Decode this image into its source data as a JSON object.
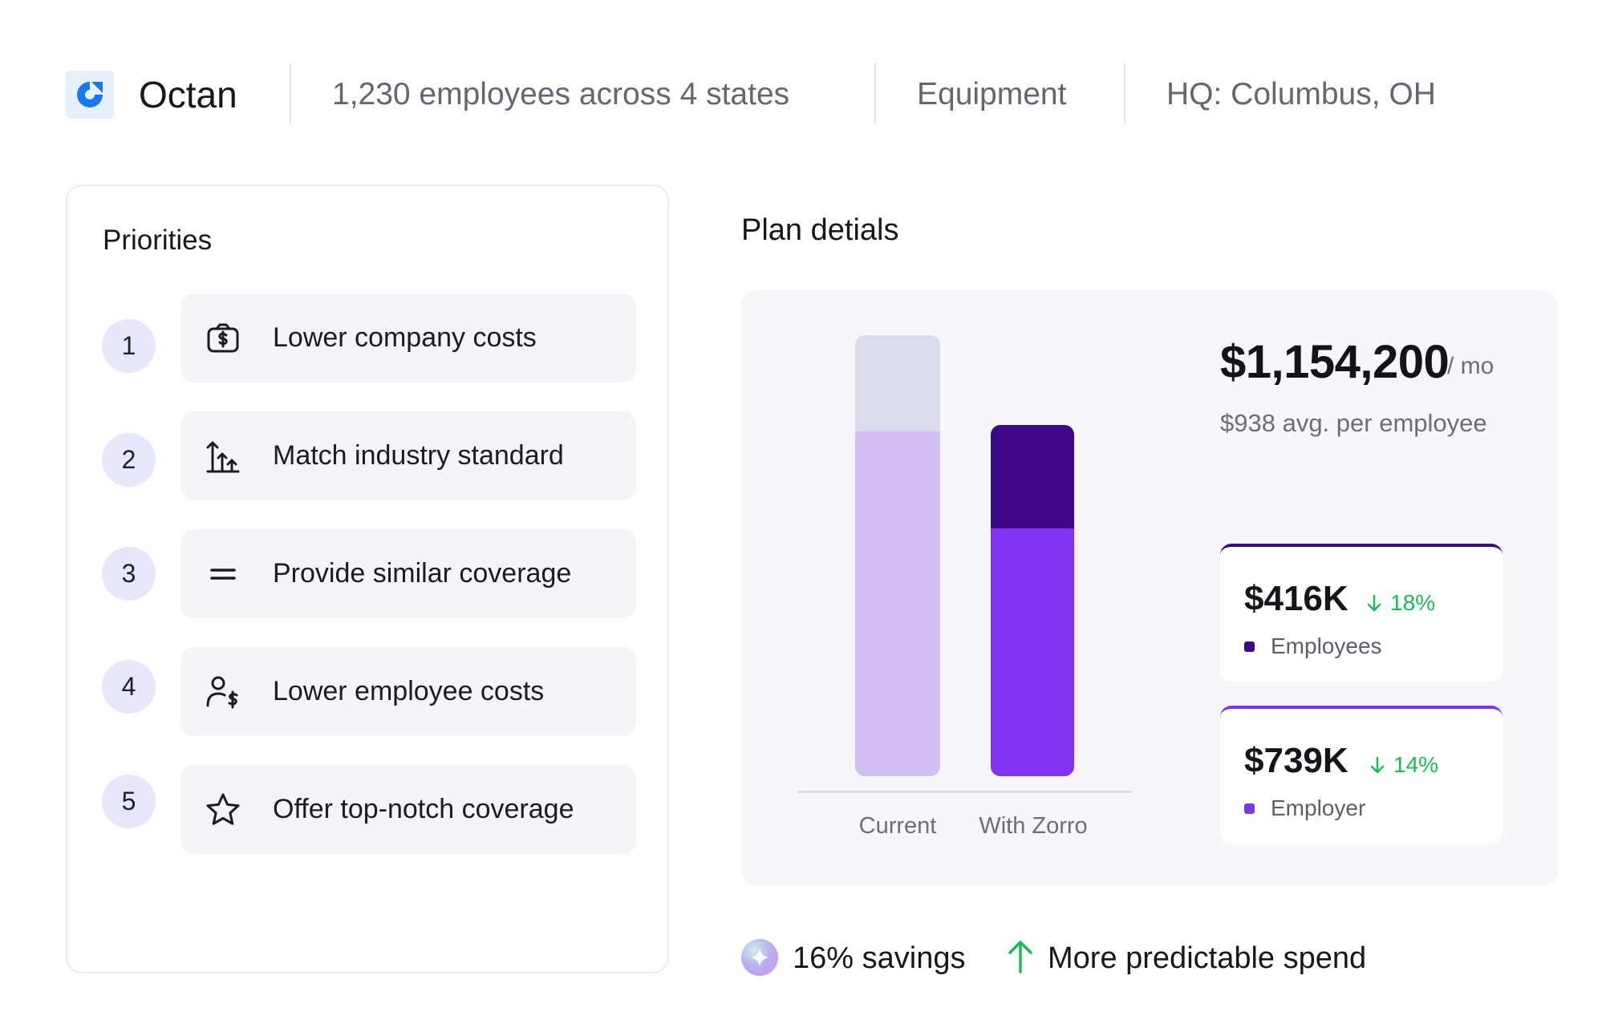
{
  "header": {
    "logo_icon": "octan-logo-icon",
    "company_name": "Octan",
    "employees": "1,230 employees across 4 states",
    "industry": "Equipment",
    "hq": "HQ: Columbus, OH"
  },
  "priorities": {
    "title": "Priorities",
    "items": [
      {
        "rank": "1",
        "icon": "money-bag-icon",
        "label": "Lower company costs"
      },
      {
        "rank": "2",
        "icon": "bar-chart-up-icon",
        "label": "Match industry standard"
      },
      {
        "rank": "3",
        "icon": "equals-icon",
        "label": "Provide similar coverage"
      },
      {
        "rank": "4",
        "icon": "user-dollar-icon",
        "label": "Lower employee costs"
      },
      {
        "rank": "5",
        "icon": "star-icon",
        "label": "Offer top-notch coverage"
      }
    ]
  },
  "plan": {
    "title": "Plan detials",
    "total_amount": "$1,154,200",
    "total_unit": "/ mo",
    "avg_per_employee": "$938 avg. per employee",
    "breakdown": [
      {
        "amount": "$416K",
        "delta": "18%",
        "delta_direction": "down",
        "label": "Employees",
        "color": "#3b0886"
      },
      {
        "amount": "$739K",
        "delta": "14%",
        "delta_direction": "down",
        "label": "Employer",
        "color": "#7c35f0"
      }
    ]
  },
  "chart_data": {
    "type": "bar",
    "stacked": true,
    "categories": [
      "Current",
      "With Zorro"
    ],
    "series": [
      {
        "values": [
          1.0,
          0.72
        ],
        "colors": [
          "#d2bff4",
          "#8033f1"
        ]
      },
      {
        "values": [
          0.28,
          0.3
        ],
        "colors": [
          "#dadbeb",
          "#3d0787"
        ]
      }
    ],
    "ylim": [
      0,
      1.28
    ],
    "grid": false
  },
  "highlights": {
    "savings": {
      "icon": "sparkle-icon",
      "text": "16% savings"
    },
    "spend": {
      "icon": "arrow-up-icon",
      "text": "More predictable spend",
      "color": "#1db954"
    }
  }
}
